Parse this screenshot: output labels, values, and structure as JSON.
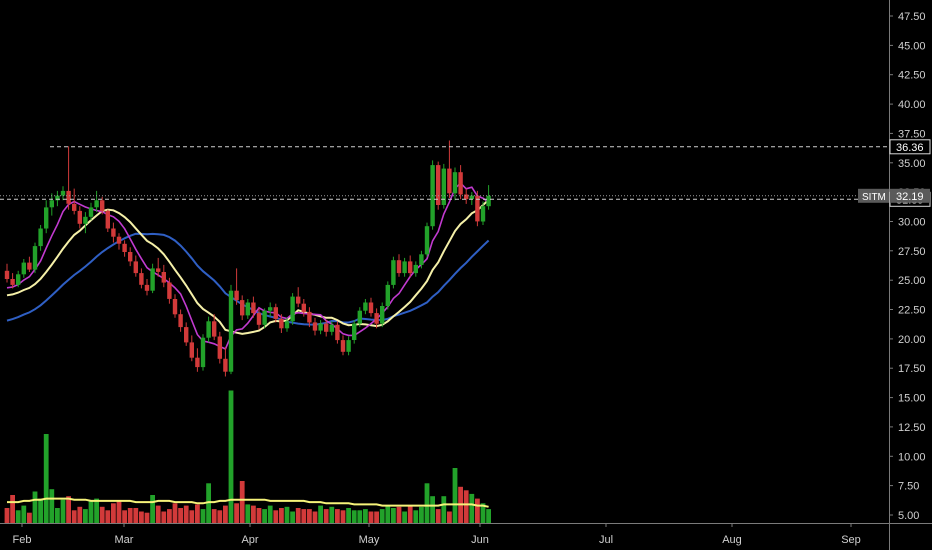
{
  "chart_data": {
    "type": "candlestick",
    "ticker": "SITM",
    "price_axis": {
      "ticks": [
        "47.50",
        "45.00",
        "42.50",
        "40.00",
        "37.50",
        "35.00",
        "32.50",
        "30.00",
        "27.50",
        "25.00",
        "22.50",
        "20.00",
        "17.50",
        "15.00",
        "12.50",
        "10.00",
        "7.50",
        "5.00"
      ],
      "range": [
        4.5,
        48.5
      ]
    },
    "time_axis": {
      "ticks": [
        "Feb",
        "Mar",
        "Apr",
        "May",
        "Jun",
        "Jul",
        "Aug",
        "Sep"
      ]
    },
    "markers": {
      "last": {
        "label": "SITM",
        "value": "32.19"
      },
      "level_high": {
        "value": "36.36"
      },
      "level_low": {
        "value": "31.89"
      }
    },
    "candles_ohlc": [
      [
        25.8,
        26.4,
        24.8,
        25.1
      ],
      [
        25.1,
        25.6,
        24.3,
        24.6
      ],
      [
        24.6,
        25.8,
        24.4,
        25.5
      ],
      [
        25.5,
        26.8,
        25.2,
        26.5
      ],
      [
        26.5,
        27.0,
        25.7,
        25.9
      ],
      [
        25.9,
        28.2,
        25.6,
        27.9
      ],
      [
        27.9,
        29.7,
        27.5,
        29.4
      ],
      [
        29.4,
        31.8,
        29.0,
        31.2
      ],
      [
        31.2,
        32.4,
        30.5,
        31.8
      ],
      [
        31.8,
        32.6,
        31.3,
        32.2
      ],
      [
        32.2,
        33.0,
        31.8,
        32.6
      ],
      [
        32.6,
        36.4,
        31.0,
        31.5
      ],
      [
        31.5,
        32.8,
        30.6,
        30.9
      ],
      [
        30.9,
        31.3,
        29.4,
        29.8
      ],
      [
        29.8,
        30.8,
        29.0,
        30.4
      ],
      [
        30.4,
        31.6,
        30.1,
        31.2
      ],
      [
        31.2,
        32.6,
        30.8,
        31.8
      ],
      [
        31.8,
        32.1,
        30.6,
        30.9
      ],
      [
        30.9,
        31.0,
        29.1,
        29.4
      ],
      [
        29.4,
        29.9,
        28.2,
        28.7
      ],
      [
        28.7,
        29.0,
        27.6,
        28.1
      ],
      [
        28.1,
        28.4,
        27.0,
        27.4
      ],
      [
        27.4,
        27.8,
        26.2,
        26.6
      ],
      [
        26.6,
        27.1,
        25.3,
        25.6
      ],
      [
        25.6,
        26.0,
        24.3,
        24.6
      ],
      [
        24.6,
        25.1,
        23.7,
        24.1
      ],
      [
        24.1,
        26.4,
        23.9,
        26.0
      ],
      [
        26.0,
        26.9,
        25.3,
        25.7
      ],
      [
        25.7,
        26.3,
        24.4,
        24.8
      ],
      [
        24.8,
        25.2,
        23.0,
        23.4
      ],
      [
        23.4,
        23.8,
        21.8,
        22.1
      ],
      [
        22.1,
        22.5,
        20.6,
        21.0
      ],
      [
        21.0,
        21.4,
        19.4,
        19.7
      ],
      [
        19.7,
        20.3,
        18.1,
        18.4
      ],
      [
        18.4,
        19.2,
        17.2,
        17.6
      ],
      [
        17.6,
        20.4,
        17.3,
        20.1
      ],
      [
        20.1,
        21.9,
        19.7,
        21.5
      ],
      [
        21.5,
        22.1,
        19.9,
        20.2
      ],
      [
        20.2,
        20.6,
        17.9,
        18.3
      ],
      [
        18.3,
        19.3,
        16.8,
        17.2
      ],
      [
        17.2,
        24.6,
        17.0,
        24.1
      ],
      [
        24.1,
        26.0,
        22.9,
        23.3
      ],
      [
        23.3,
        23.7,
        21.6,
        22.0
      ],
      [
        22.0,
        23.4,
        21.7,
        23.1
      ],
      [
        23.1,
        23.6,
        21.8,
        22.2
      ],
      [
        22.2,
        22.6,
        20.8,
        21.2
      ],
      [
        21.2,
        22.6,
        20.9,
        22.4
      ],
      [
        22.4,
        23.1,
        21.9,
        22.7
      ],
      [
        22.7,
        23.0,
        21.4,
        21.7
      ],
      [
        21.7,
        22.1,
        20.5,
        20.9
      ],
      [
        20.9,
        21.8,
        20.6,
        21.5
      ],
      [
        21.5,
        23.9,
        21.2,
        23.6
      ],
      [
        23.6,
        24.4,
        22.7,
        23.0
      ],
      [
        23.0,
        23.4,
        21.9,
        22.3
      ],
      [
        22.3,
        22.7,
        21.0,
        21.4
      ],
      [
        21.4,
        21.8,
        20.3,
        20.7
      ],
      [
        20.7,
        21.6,
        20.4,
        21.3
      ],
      [
        21.3,
        21.6,
        20.2,
        20.6
      ],
      [
        20.6,
        21.5,
        20.3,
        21.2
      ],
      [
        21.2,
        21.5,
        19.6,
        19.9
      ],
      [
        19.9,
        20.3,
        18.6,
        18.9
      ],
      [
        18.9,
        20.2,
        18.6,
        19.9
      ],
      [
        19.9,
        21.6,
        19.6,
        21.3
      ],
      [
        21.3,
        22.7,
        21.0,
        22.4
      ],
      [
        22.4,
        23.4,
        22.1,
        23.1
      ],
      [
        23.1,
        23.5,
        21.9,
        22.2
      ],
      [
        22.2,
        22.6,
        20.9,
        21.3
      ],
      [
        21.3,
        23.1,
        21.0,
        22.8
      ],
      [
        22.8,
        24.9,
        22.5,
        24.6
      ],
      [
        24.6,
        27.0,
        24.3,
        26.7
      ],
      [
        26.7,
        27.2,
        25.3,
        25.6
      ],
      [
        25.6,
        26.9,
        25.3,
        26.6
      ],
      [
        26.6,
        27.1,
        25.3,
        25.6
      ],
      [
        25.6,
        26.6,
        25.3,
        26.3
      ],
      [
        26.3,
        27.5,
        26.0,
        27.2
      ],
      [
        27.2,
        29.9,
        27.0,
        29.6
      ],
      [
        29.6,
        35.2,
        29.3,
        34.8
      ],
      [
        34.8,
        35.1,
        31.0,
        31.4
      ],
      [
        31.4,
        34.9,
        31.1,
        34.5
      ],
      [
        34.5,
        36.9,
        32.0,
        32.4
      ],
      [
        32.4,
        34.6,
        31.8,
        34.2
      ],
      [
        34.2,
        34.8,
        31.9,
        32.3
      ],
      [
        32.3,
        32.8,
        31.5,
        31.9
      ],
      [
        31.9,
        32.5,
        31.4,
        32.2
      ],
      [
        32.2,
        32.6,
        29.6,
        30.0
      ],
      [
        30.0,
        31.7,
        29.7,
        31.3
      ],
      [
        31.3,
        33.1,
        31.0,
        32.19
      ]
    ],
    "volume_bars": [
      5.6,
      6.7,
      5.4,
      5.8,
      5.2,
      7.0,
      6.4,
      11.9,
      7.2,
      5.6,
      6.3,
      6.6,
      5.4,
      5.7,
      5.5,
      6.2,
      6.4,
      5.7,
      5.4,
      6.0,
      6.2,
      5.4,
      5.6,
      5.6,
      5.3,
      5.2,
      6.7,
      5.8,
      5.3,
      5.5,
      6.0,
      5.6,
      5.8,
      5.4,
      5.9,
      5.5,
      7.7,
      5.5,
      5.4,
      5.8,
      15.6,
      6.0,
      7.9,
      5.9,
      5.8,
      5.6,
      5.5,
      5.8,
      5.4,
      5.6,
      5.7,
      5.3,
      5.6,
      5.5,
      5.5,
      5.3,
      5.8,
      5.5,
      5.7,
      5.5,
      5.4,
      5.6,
      5.4,
      5.4,
      5.5,
      5.3,
      5.3,
      5.5,
      5.8,
      5.6,
      5.7,
      5.3,
      5.8,
      5.4,
      5.7,
      7.7,
      6.6,
      5.5,
      6.6,
      5.3,
      9.0,
      7.4,
      7.1,
      6.8,
      6.4,
      6.0,
      5.5
    ],
    "volume_ma": [
      6.1,
      6.1,
      6.1,
      6.2,
      6.2,
      6.3,
      6.3,
      6.4,
      6.4,
      6.4,
      6.4,
      6.4,
      6.3,
      6.3,
      6.3,
      6.2,
      6.2,
      6.2,
      6.2,
      6.2,
      6.2,
      6.2,
      6.2,
      6.1,
      6.1,
      6.1,
      6.1,
      6.2,
      6.2,
      6.2,
      6.1,
      6.1,
      6.1,
      6.1,
      6.0,
      6.0,
      6.1,
      6.1,
      6.2,
      6.2,
      6.3,
      6.3,
      6.3,
      6.3,
      6.3,
      6.3,
      6.3,
      6.2,
      6.2,
      6.2,
      6.2,
      6.2,
      6.2,
      6.2,
      6.1,
      6.1,
      6.1,
      6.0,
      6.0,
      6.0,
      6.0,
      6.0,
      5.9,
      5.9,
      5.9,
      5.9,
      5.9,
      5.8,
      5.8,
      5.8,
      5.8,
      5.8,
      5.8,
      5.8,
      5.8,
      5.8,
      5.8,
      5.8,
      5.9,
      5.9,
      5.9,
      5.9,
      5.9,
      5.9,
      5.8,
      5.8,
      5.7
    ]
  },
  "colors": {
    "background": "#000000",
    "up": "#22a22a",
    "down": "#d23a3a",
    "ma_fast": "#c23ad0",
    "ma_mid": "#f5f0a8",
    "ma_slow": "#2f5fc4",
    "volume_ma": "#f6f37a",
    "axis_text": "#d0d0d0",
    "axis_line": "#7a7a7a",
    "level_line": "#cfcfcf"
  }
}
